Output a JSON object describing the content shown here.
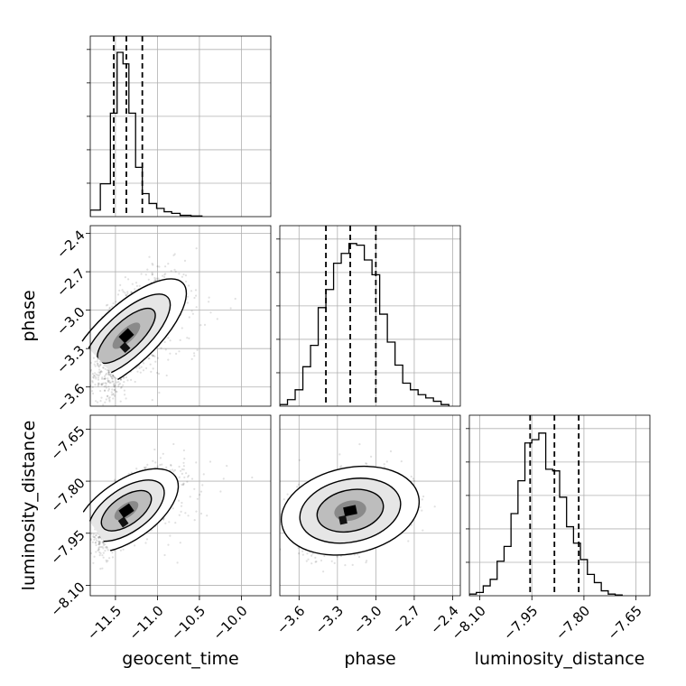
{
  "chart_data": {
    "type": "corner",
    "parameters": [
      "geocent_time",
      "phase",
      "luminosity_distance"
    ],
    "xlabels": [
      "geocent_time",
      "phase",
      "luminosity_distance"
    ],
    "ylabels": [
      "",
      "phase",
      "luminosity_distance"
    ],
    "grid": true,
    "ranges": {
      "geocent_time": [
        -11.8,
        -9.65
      ],
      "phase": [
        -3.75,
        -2.34
      ],
      "luminosity_distance": [
        -8.13,
        -7.61
      ]
    },
    "ticks": {
      "geocent_time": [
        -11.5,
        -11.0,
        -10.5,
        -10.0
      ],
      "phase": [
        -3.6,
        -3.3,
        -3.0,
        -2.7,
        -2.4
      ],
      "luminosity_distance": [
        -8.1,
        -7.95,
        -7.8,
        -7.65
      ]
    },
    "tick_labels": {
      "geocent_time": [
        "−11.5",
        "−11.0",
        "−10.5",
        "−10.0"
      ],
      "phase": [
        "−3.6",
        "−3.3",
        "−3.0",
        "−2.7",
        "−2.4"
      ],
      "luminosity_distance": [
        "−8.10",
        "−7.95",
        "−7.80",
        "−7.65"
      ]
    },
    "quantiles": {
      "geocent_time": [
        -11.52,
        -11.37,
        -11.18
      ],
      "phase": [
        -3.39,
        -3.2,
        -3.0
      ],
      "luminosity_distance": [
        -7.955,
        -7.885,
        -7.815
      ]
    },
    "histograms": {
      "geocent_time": {
        "bin_edges": [
          -11.8,
          -11.68,
          -11.56,
          -11.48,
          -11.41,
          -11.34,
          -11.26,
          -11.18,
          -11.1,
          -11.01,
          -10.92,
          -10.83,
          -10.73,
          -10.6,
          -10.47
        ],
        "counts": [
          0.04,
          0.2,
          0.63,
          1.0,
          0.93,
          0.63,
          0.3,
          0.14,
          0.08,
          0.05,
          0.03,
          0.02,
          0.008,
          0.004
        ]
      },
      "phase": {
        "bin_edges": [
          -3.75,
          -3.69,
          -3.63,
          -3.57,
          -3.51,
          -3.45,
          -3.39,
          -3.33,
          -3.27,
          -3.21,
          -3.15,
          -3.09,
          -3.03,
          -2.97,
          -2.91,
          -2.85,
          -2.79,
          -2.73,
          -2.67,
          -2.61,
          -2.55,
          -2.49,
          -2.43
        ],
        "counts": [
          0.01,
          0.04,
          0.1,
          0.24,
          0.37,
          0.6,
          0.71,
          0.87,
          0.93,
          0.99,
          0.98,
          0.89,
          0.8,
          0.56,
          0.39,
          0.25,
          0.14,
          0.1,
          0.07,
          0.05,
          0.03,
          0.01
        ]
      },
      "luminosity_distance": {
        "bin_edges": [
          -8.13,
          -8.11,
          -8.09,
          -8.07,
          -8.05,
          -8.03,
          -8.01,
          -7.99,
          -7.97,
          -7.95,
          -7.93,
          -7.91,
          -7.89,
          -7.87,
          -7.85,
          -7.83,
          -7.81,
          -7.79,
          -7.77,
          -7.75,
          -7.73,
          -7.71,
          -7.69
        ],
        "counts": [
          0.01,
          0.02,
          0.06,
          0.1,
          0.21,
          0.3,
          0.5,
          0.7,
          0.93,
          0.95,
          0.99,
          0.77,
          0.76,
          0.6,
          0.42,
          0.32,
          0.22,
          0.13,
          0.08,
          0.03,
          0.01,
          0.005
        ]
      }
    },
    "pairs": [
      {
        "x": "geocent_time",
        "y": "phase",
        "rho": 0.65
      },
      {
        "x": "geocent_time",
        "y": "luminosity_distance",
        "rho": 0.7
      },
      {
        "x": "phase",
        "y": "luminosity_distance",
        "rho": 0.35
      }
    ],
    "summary": {
      "geocent_time": {
        "center": -11.37,
        "sigma": 0.18
      },
      "phase": {
        "center": -3.2,
        "sigma": 0.2
      },
      "luminosity_distance": {
        "center": -7.885,
        "sigma": 0.05
      }
    }
  }
}
